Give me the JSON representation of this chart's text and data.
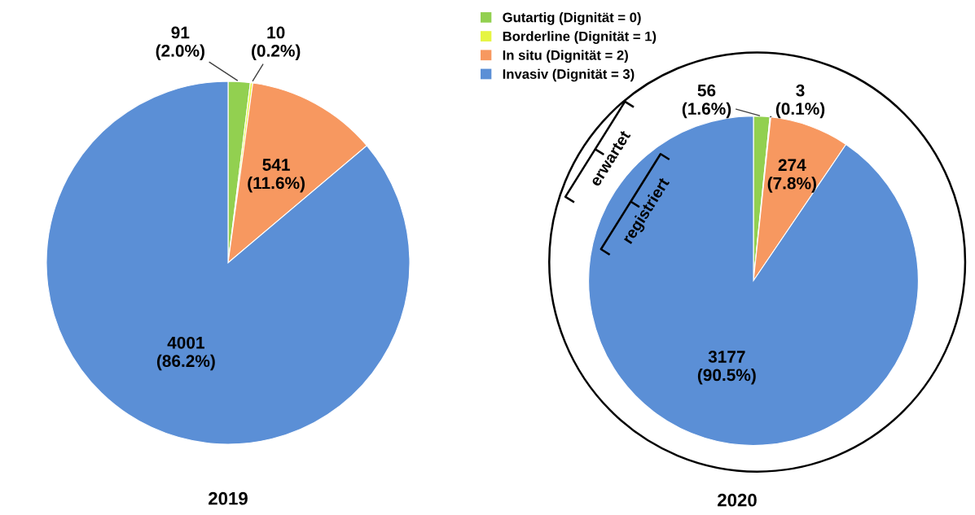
{
  "chart_data": [
    {
      "type": "pie",
      "title": "2019",
      "categories": [
        "Gutartig (Dignität = 0)",
        "Borderline (Dignität = 1)",
        "In situ (Dignität = 2)",
        "Invasiv (Dignität = 3)"
      ],
      "values": [
        91,
        10,
        541,
        4001
      ],
      "colors": [
        "#92d050",
        "#e6f542",
        "#f79860",
        "#5b8fd6"
      ],
      "value_labels": [
        "91\n(2.0%)",
        "10\n(0.2%)",
        "541\n(11.6%)",
        "4001\n(86.2%)"
      ],
      "legend": "right"
    },
    {
      "type": "pie",
      "title": "2020",
      "categories": [
        null,
        null,
        null,
        null
      ],
      "values": [
        56,
        3,
        274,
        3177
      ],
      "colors": [
        "#92d050",
        "#e6f542",
        "#f79860",
        "#5b8fd6"
      ],
      "value_labels": [
        "56\n(1.6%)",
        "3\n(0.1%)",
        "274\n(7.8%)",
        "3177\n(90.5%)"
      ],
      "annotations": [
        "erwartet",
        "registriert"
      ]
    }
  ]
}
